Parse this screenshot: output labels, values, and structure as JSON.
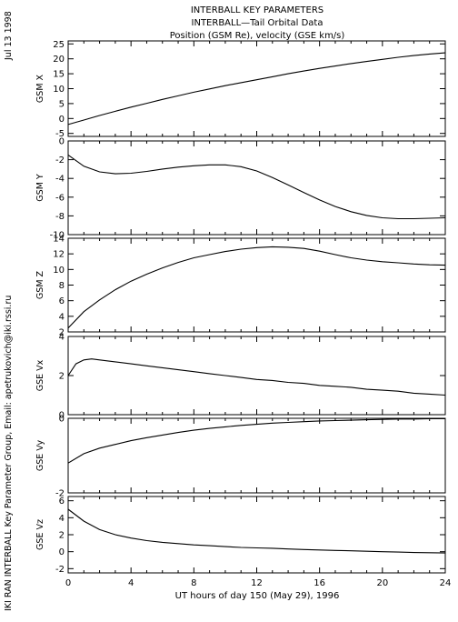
{
  "header": {
    "title_lines": [
      "INTERBALL KEY PARAMETERS",
      "INTERBALL—Tail Orbital Data",
      "Position (GSM Re), velocity (GSE km/s)"
    ],
    "date": "Jul 13 1998",
    "credit": "IKI RAN INTERBALL Key Parameter Group, Email: apetrukovich@iki.rssi.ru"
  },
  "chart_data": [
    {
      "type": "line",
      "ylabel": "GSM X",
      "ylim": [
        -6,
        26
      ],
      "yticks": [
        -5,
        0,
        5,
        10,
        15,
        20,
        25
      ],
      "xlabel": "",
      "xlim": [
        0,
        24
      ],
      "series": [
        {
          "x": [
            0,
            1,
            2,
            3,
            4,
            5,
            6,
            7,
            8,
            9,
            10,
            11,
            12,
            13,
            14,
            15,
            16,
            17,
            18,
            19,
            20,
            21,
            22,
            23,
            24
          ],
          "values": [
            -2.0,
            -0.5,
            1.0,
            2.4,
            3.8,
            5.1,
            6.4,
            7.6,
            8.8,
            9.9,
            11.0,
            12.0,
            13.0,
            14.0,
            15.0,
            15.9,
            16.8,
            17.6,
            18.4,
            19.1,
            19.8,
            20.5,
            21.1,
            21.6,
            22.0
          ]
        }
      ]
    },
    {
      "type": "line",
      "ylabel": "GSM Y",
      "ylim": [
        -10,
        0
      ],
      "yticks": [
        -10,
        -8,
        -6,
        -4,
        -2,
        0
      ],
      "xlabel": "",
      "xlim": [
        0,
        24
      ],
      "series": [
        {
          "x": [
            0,
            1,
            2,
            3,
            4,
            5,
            6,
            7,
            8,
            9,
            10,
            11,
            12,
            13,
            14,
            15,
            16,
            17,
            18,
            19,
            20,
            21,
            22,
            23,
            24
          ],
          "values": [
            -1.5,
            -2.7,
            -3.3,
            -3.5,
            -3.45,
            -3.25,
            -3.0,
            -2.8,
            -2.65,
            -2.55,
            -2.55,
            -2.75,
            -3.2,
            -3.9,
            -4.7,
            -5.5,
            -6.3,
            -7.0,
            -7.55,
            -7.95,
            -8.2,
            -8.3,
            -8.3,
            -8.25,
            -8.2
          ]
        }
      ]
    },
    {
      "type": "line",
      "ylabel": "GSM Z",
      "ylim": [
        2,
        14
      ],
      "yticks": [
        2,
        4,
        6,
        8,
        10,
        12,
        14
      ],
      "xlabel": "",
      "xlim": [
        0,
        24
      ],
      "series": [
        {
          "x": [
            0,
            1,
            2,
            3,
            4,
            5,
            6,
            7,
            8,
            9,
            10,
            11,
            12,
            13,
            14,
            15,
            16,
            17,
            18,
            19,
            20,
            21,
            22,
            23,
            24
          ],
          "values": [
            2.5,
            4.6,
            6.1,
            7.4,
            8.5,
            9.4,
            10.2,
            10.9,
            11.5,
            11.9,
            12.3,
            12.6,
            12.8,
            12.9,
            12.85,
            12.7,
            12.35,
            11.9,
            11.5,
            11.2,
            11.0,
            10.85,
            10.7,
            10.6,
            10.55
          ]
        }
      ]
    },
    {
      "type": "line",
      "ylabel": "GSE Vx",
      "ylim": [
        0,
        4
      ],
      "yticks": [
        0,
        2,
        4
      ],
      "xlabel": "",
      "xlim": [
        0,
        24
      ],
      "series": [
        {
          "x": [
            0,
            0.5,
            1,
            1.5,
            2,
            3,
            4,
            5,
            6,
            7,
            8,
            9,
            10,
            11,
            12,
            13,
            14,
            15,
            16,
            17,
            18,
            19,
            20,
            21,
            22,
            23,
            24
          ],
          "values": [
            2.0,
            2.6,
            2.8,
            2.85,
            2.8,
            2.7,
            2.6,
            2.5,
            2.4,
            2.3,
            2.2,
            2.1,
            2.0,
            1.9,
            1.8,
            1.75,
            1.65,
            1.6,
            1.5,
            1.45,
            1.4,
            1.3,
            1.25,
            1.2,
            1.1,
            1.05,
            1.0
          ]
        }
      ]
    },
    {
      "type": "line",
      "ylabel": "GSE Vy",
      "ylim": [
        -2,
        0
      ],
      "yticks": [
        -2,
        0
      ],
      "xlabel": "",
      "xlim": [
        0,
        24
      ],
      "series": [
        {
          "x": [
            0,
            1,
            2,
            3,
            4,
            5,
            6,
            7,
            8,
            9,
            10,
            11,
            12,
            13,
            14,
            15,
            16,
            17,
            18,
            19,
            20,
            21,
            22,
            23,
            24
          ],
          "values": [
            -1.2,
            -0.95,
            -0.8,
            -0.7,
            -0.6,
            -0.52,
            -0.45,
            -0.38,
            -0.32,
            -0.27,
            -0.23,
            -0.19,
            -0.16,
            -0.13,
            -0.11,
            -0.09,
            -0.07,
            -0.06,
            -0.05,
            -0.04,
            -0.03,
            -0.02,
            -0.02,
            -0.01,
            -0.01
          ]
        }
      ]
    },
    {
      "type": "line",
      "ylabel": "GSE Vz",
      "ylim": [
        -2.5,
        6.5
      ],
      "yticks": [
        -2,
        0,
        2,
        4,
        6
      ],
      "xlabel": "UT hours of day 150 (May 29), 1996",
      "xlim": [
        0,
        24
      ],
      "xticks": [
        0,
        4,
        8,
        12,
        16,
        20,
        24
      ],
      "series": [
        {
          "x": [
            0,
            1,
            2,
            3,
            4,
            5,
            6,
            7,
            8,
            9,
            10,
            11,
            12,
            13,
            14,
            15,
            16,
            17,
            18,
            19,
            20,
            21,
            22,
            23,
            24
          ],
          "values": [
            5.0,
            3.6,
            2.6,
            2.0,
            1.6,
            1.3,
            1.1,
            0.95,
            0.8,
            0.7,
            0.6,
            0.5,
            0.45,
            0.4,
            0.32,
            0.25,
            0.2,
            0.15,
            0.1,
            0.05,
            0.0,
            -0.05,
            -0.1,
            -0.12,
            -0.15
          ]
        }
      ]
    }
  ]
}
